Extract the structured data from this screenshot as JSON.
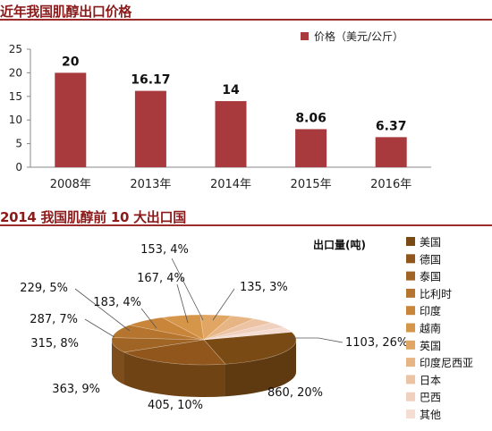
{
  "chart_data": [
    {
      "type": "bar",
      "title": "近年我国肌醇出口价格",
      "legend": "价格（美元/公斤）",
      "categories": [
        "2008年",
        "2013年",
        "2014年",
        "2015年",
        "2016年"
      ],
      "values": [
        20,
        16.17,
        14,
        8.06,
        6.37
      ],
      "value_labels": [
        "20",
        "16.17",
        "14",
        "8.06",
        "6.37"
      ],
      "ylim": [
        0,
        25
      ],
      "yticks": [
        "0",
        "5",
        "10",
        "15",
        "20",
        "25"
      ],
      "color": "#a8393c"
    },
    {
      "type": "pie",
      "title": "2014 我国肌醇前 10 大出口国",
      "legend_title": "出口量(吨)",
      "categories": [
        "美国",
        "德国",
        "泰国",
        "比利时",
        "印度",
        "越南",
        "英国",
        "印度尼西亚",
        "日本",
        "巴西",
        "其他"
      ],
      "values": [
        1103,
        860,
        405,
        363,
        315,
        287,
        229,
        183,
        167,
        153,
        135
      ],
      "labels": [
        "1103, 26%",
        "860, 20%",
        "405, 10%",
        "363, 9%",
        "315, 8%",
        "287, 7%",
        "229, 5%",
        "183, 4%",
        "167, 4%",
        "153, 4%",
        "135, 3%"
      ],
      "colors": [
        "#7a4a14",
        "#90561b",
        "#a06424",
        "#b5752f",
        "#c9853a",
        "#d69649",
        "#e2a664",
        "#e7b584",
        "#ecc4a4",
        "#f0d0bf",
        "#f5ddd4"
      ]
    }
  ]
}
